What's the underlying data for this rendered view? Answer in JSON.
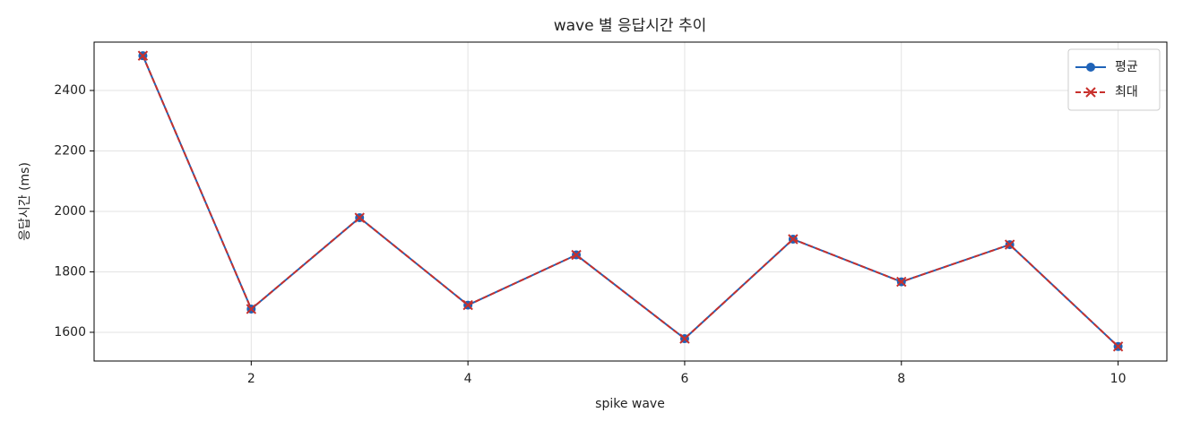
{
  "chart_data": {
    "type": "line",
    "title": "wave 별 응답시간 추이",
    "x_label": "spike wave",
    "y_label": "응답시간 (ms)",
    "x": [
      1,
      2,
      3,
      4,
      5,
      6,
      7,
      8,
      9,
      10
    ],
    "series": [
      {
        "name": "평균",
        "color": "#1f63b8",
        "marker": "circle",
        "dash": "solid",
        "values": [
          2515,
          1677,
          1979,
          1690,
          1856,
          1579,
          1908,
          1767,
          1890,
          1553
        ]
      },
      {
        "name": "최대",
        "color": "#c8302c",
        "marker": "x",
        "dash": "dashed",
        "values": [
          2515,
          1677,
          1979,
          1690,
          1856,
          1579,
          1908,
          1767,
          1890,
          1553
        ]
      }
    ],
    "xlim": [
      0.55,
      10.45
    ],
    "ylim": [
      1505,
      2560
    ],
    "xticks": [
      2,
      4,
      6,
      8,
      10
    ],
    "yticks": [
      1600,
      1800,
      2000,
      2200,
      2400
    ],
    "grid": true,
    "legend": "upper right"
  }
}
